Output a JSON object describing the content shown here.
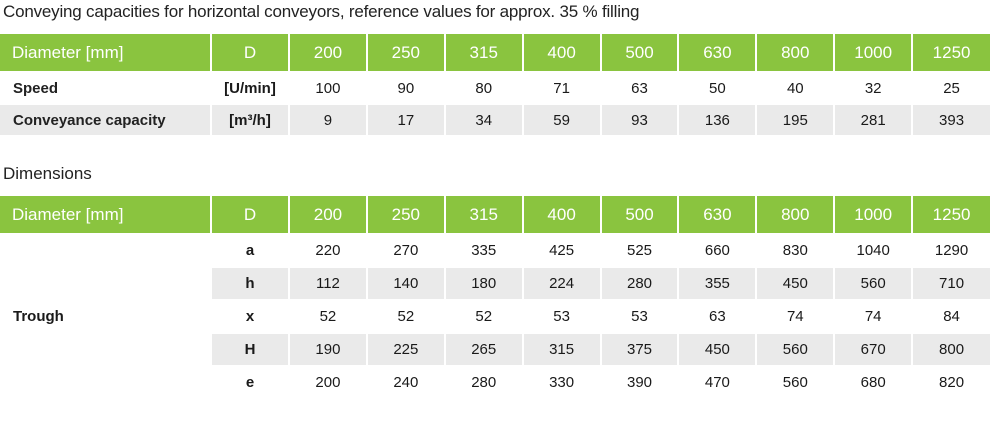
{
  "title": "Conveying capacities for horizontal conveyors, reference values for approx. 35 % filling",
  "table1": {
    "header": [
      "Diameter [mm]",
      "D",
      "200",
      "250",
      "315",
      "400",
      "500",
      "630",
      "800",
      "1000",
      "1250"
    ],
    "rows": [
      {
        "label": "Speed",
        "unit": "[U/min]",
        "values": [
          "100",
          "90",
          "80",
          "71",
          "63",
          "50",
          "40",
          "32",
          "25"
        ]
      },
      {
        "label": "Conveyance capacity",
        "unit": "[m³/h]",
        "values": [
          "9",
          "17",
          "34",
          "59",
          "93",
          "136",
          "195",
          "281",
          "393"
        ]
      }
    ]
  },
  "dimensions_title": "Dimensions",
  "table2": {
    "header": [
      "Diameter [mm]",
      "D",
      "200",
      "250",
      "315",
      "400",
      "500",
      "630",
      "800",
      "1000",
      "1250"
    ],
    "group_label": "Trough",
    "rows": [
      {
        "key": "a",
        "values": [
          "220",
          "270",
          "335",
          "425",
          "525",
          "660",
          "830",
          "1040",
          "1290"
        ]
      },
      {
        "key": "h",
        "values": [
          "112",
          "140",
          "180",
          "224",
          "280",
          "355",
          "450",
          "560",
          "710"
        ]
      },
      {
        "key": "x",
        "values": [
          "52",
          "52",
          "52",
          "53",
          "53",
          "63",
          "74",
          "74",
          "84"
        ]
      },
      {
        "key": "H",
        "values": [
          "190",
          "225",
          "265",
          "315",
          "375",
          "450",
          "560",
          "670",
          "800"
        ]
      },
      {
        "key": "e",
        "values": [
          "200",
          "240",
          "280",
          "330",
          "390",
          "470",
          "560",
          "680",
          "820"
        ]
      }
    ]
  }
}
